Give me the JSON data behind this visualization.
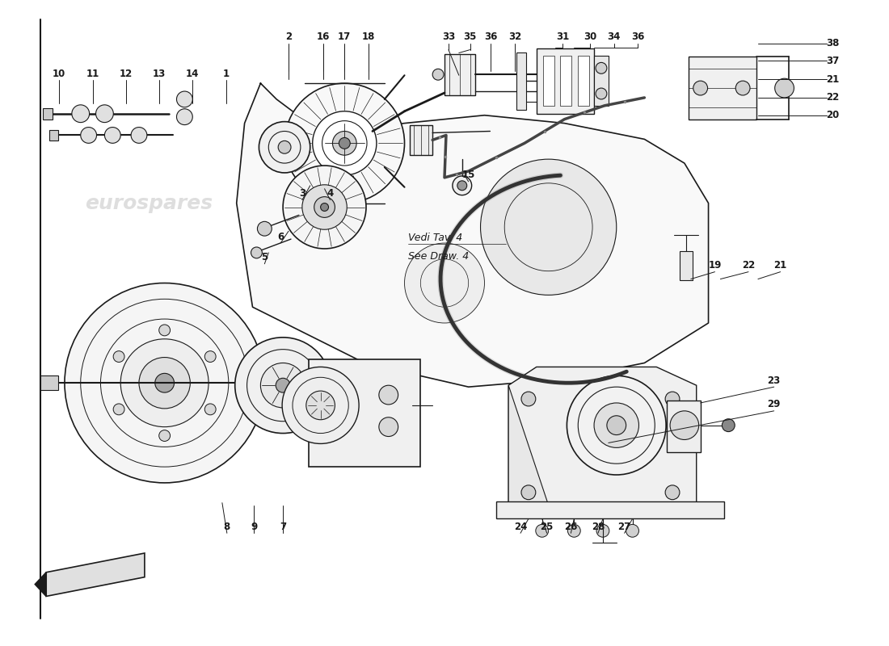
{
  "bg": "#ffffff",
  "lc": "#1a1a1a",
  "lw": 1.0,
  "part_labels": [
    [
      "10",
      0.68,
      7.12
    ],
    [
      "11",
      1.1,
      7.12
    ],
    [
      "12",
      1.52,
      7.12
    ],
    [
      "13",
      1.93,
      7.12
    ],
    [
      "14",
      2.35,
      7.12
    ],
    [
      "1",
      2.77,
      7.12
    ],
    [
      "2",
      3.55,
      7.58
    ],
    [
      "16",
      3.98,
      7.58
    ],
    [
      "17",
      4.25,
      7.58
    ],
    [
      "18",
      4.55,
      7.58
    ],
    [
      "3",
      3.72,
      5.62
    ],
    [
      "4",
      4.07,
      5.62
    ],
    [
      "6",
      3.45,
      5.08
    ],
    [
      "5",
      3.25,
      4.82
    ],
    [
      "15",
      5.8,
      5.85
    ],
    [
      "33",
      5.55,
      7.58
    ],
    [
      "35",
      5.82,
      7.58
    ],
    [
      "36",
      6.08,
      7.58
    ],
    [
      "32",
      6.38,
      7.58
    ],
    [
      "31",
      6.98,
      7.58
    ],
    [
      "30",
      7.32,
      7.58
    ],
    [
      "34",
      7.62,
      7.58
    ],
    [
      "36",
      7.92,
      7.58
    ],
    [
      "38",
      10.35,
      7.5
    ],
    [
      "37",
      10.35,
      7.28
    ],
    [
      "21",
      10.35,
      7.05
    ],
    [
      "22",
      10.35,
      6.82
    ],
    [
      "20",
      10.35,
      6.6
    ],
    [
      "19",
      8.88,
      4.72
    ],
    [
      "22",
      9.3,
      4.72
    ],
    [
      "21",
      9.7,
      4.72
    ],
    [
      "8",
      2.78,
      1.45
    ],
    [
      "9",
      3.12,
      1.45
    ],
    [
      "7",
      3.48,
      1.45
    ],
    [
      "24",
      6.45,
      1.45
    ],
    [
      "25",
      6.78,
      1.45
    ],
    [
      "26",
      7.08,
      1.45
    ],
    [
      "28",
      7.42,
      1.45
    ],
    [
      "27",
      7.75,
      1.45
    ],
    [
      "23",
      9.62,
      3.28
    ],
    [
      "29",
      9.62,
      2.98
    ]
  ],
  "watermarks": [
    [
      1.8,
      5.5,
      "eurospares"
    ],
    [
      7.2,
      2.35,
      "eurospares"
    ]
  ],
  "annotation": [
    [
      5.05,
      4.95
    ],
    "Vedi Tav. 4\nSee Draw. 4"
  ]
}
